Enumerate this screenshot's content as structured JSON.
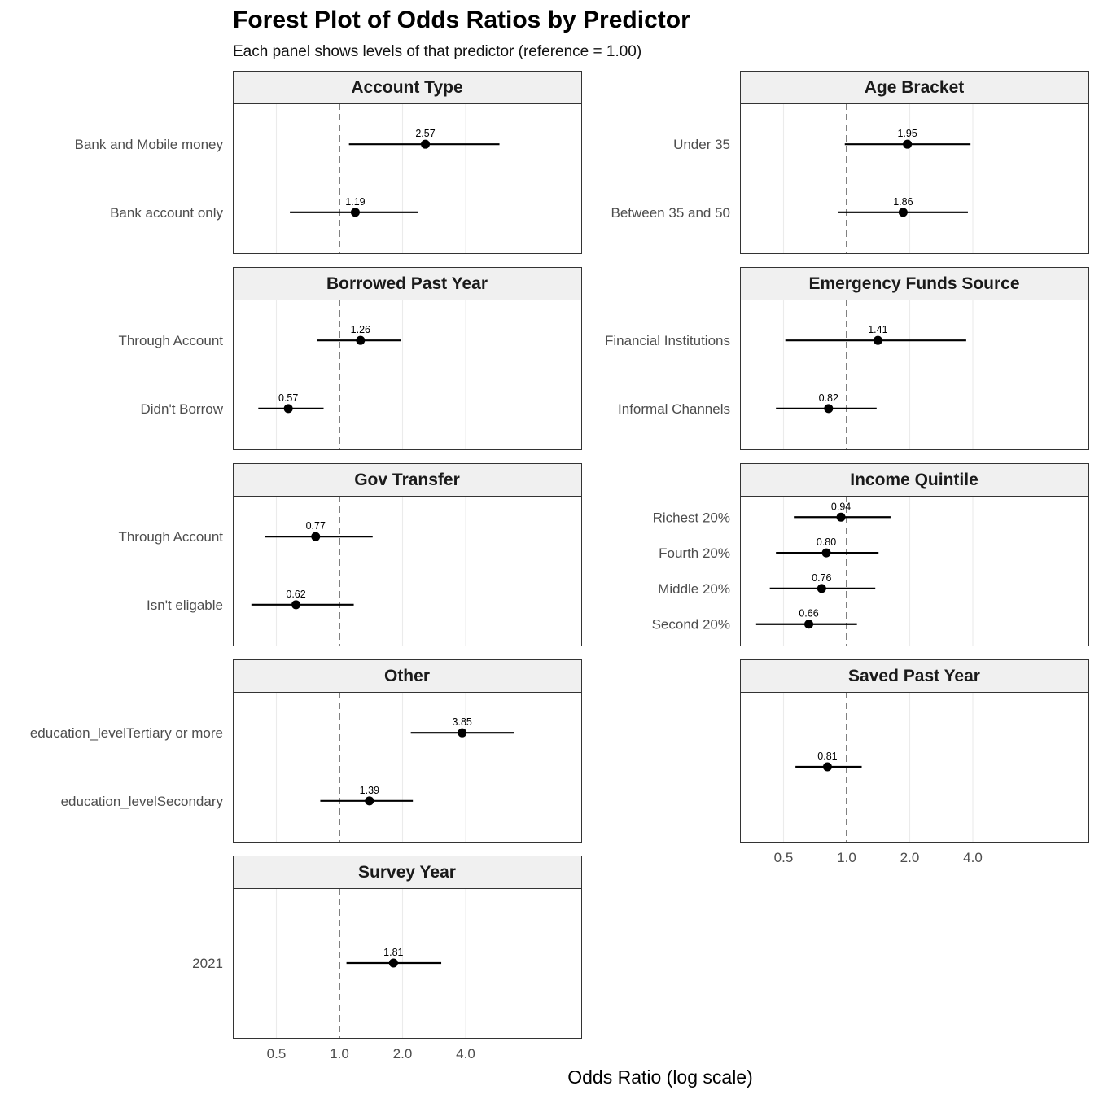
{
  "chart_data": {
    "type": "scatter",
    "subtype": "forest-plot-faceted",
    "title": "Forest Plot of Odds Ratios by Predictor",
    "subtitle": "Each panel shows levels of that predictor (reference = 1.00)",
    "xlabel": "Odds Ratio (log scale)",
    "x_scale": "log",
    "x_ticks": [
      0.5,
      1.0,
      2.0,
      4.0
    ],
    "x_tick_labels": [
      "0.5",
      "1.0",
      "2.0",
      "4.0"
    ],
    "xlim": [
      0.33,
      10.0
    ],
    "reference_line": 1.0,
    "grid": "vertical major",
    "facets": [
      {
        "name": "Account Type",
        "levels": [
          {
            "label": "Bank and Mobile money",
            "or": 2.57,
            "low": 1.11,
            "high": 5.8,
            "text": "2.57"
          },
          {
            "label": "Bank account only",
            "or": 1.19,
            "low": 0.58,
            "high": 2.38,
            "text": "1.19"
          }
        ]
      },
      {
        "name": "Age Bracket",
        "levels": [
          {
            "label": "Under 35",
            "or": 1.95,
            "low": 0.98,
            "high": 3.9,
            "text": "1.95"
          },
          {
            "label": "Between 35 and 50",
            "or": 1.86,
            "low": 0.91,
            "high": 3.79,
            "text": "1.86"
          }
        ]
      },
      {
        "name": "Borrowed Past Year",
        "levels": [
          {
            "label": "Through Account",
            "or": 1.26,
            "low": 0.78,
            "high": 1.97,
            "text": "1.26"
          },
          {
            "label": "Didn't Borrow",
            "or": 0.57,
            "low": 0.41,
            "high": 0.84,
            "text": "0.57"
          }
        ]
      },
      {
        "name": "Emergency Funds Source",
        "levels": [
          {
            "label": "Financial Institutions",
            "or": 1.41,
            "low": 0.51,
            "high": 3.72,
            "text": "1.41"
          },
          {
            "label": "Informal Channels",
            "or": 0.82,
            "low": 0.46,
            "high": 1.39,
            "text": "0.82"
          }
        ]
      },
      {
        "name": "Gov Transfer",
        "levels": [
          {
            "label": "Through Account",
            "or": 0.77,
            "low": 0.44,
            "high": 1.44,
            "text": "0.77"
          },
          {
            "label": "Isn't eligable",
            "or": 0.62,
            "low": 0.38,
            "high": 1.17,
            "text": "0.62"
          }
        ]
      },
      {
        "name": "Income Quintile",
        "levels": [
          {
            "label": "Richest 20%",
            "or": 0.94,
            "low": 0.56,
            "high": 1.62,
            "text": "0.94"
          },
          {
            "label": "Fourth 20%",
            "or": 0.8,
            "low": 0.46,
            "high": 1.42,
            "text": "0.80"
          },
          {
            "label": "Middle 20%",
            "or": 0.76,
            "low": 0.43,
            "high": 1.37,
            "text": "0.76"
          },
          {
            "label": "Second 20%",
            "or": 0.66,
            "low": 0.37,
            "high": 1.12,
            "text": "0.66"
          }
        ]
      },
      {
        "name": "Other",
        "levels": [
          {
            "label": "education_levelTertiary or more",
            "or": 3.85,
            "low": 2.19,
            "high": 6.78,
            "text": "3.85"
          },
          {
            "label": "education_levelSecondary",
            "or": 1.39,
            "low": 0.81,
            "high": 2.24,
            "text": "1.39"
          }
        ]
      },
      {
        "name": "Saved Past Year",
        "levels": [
          {
            "label": "",
            "or": 0.81,
            "low": 0.57,
            "high": 1.18,
            "text": "0.81"
          }
        ]
      },
      {
        "name": "Survey Year",
        "levels": [
          {
            "label": "2021",
            "or": 1.81,
            "low": 1.08,
            "high": 3.06,
            "text": "1.81"
          }
        ]
      }
    ]
  },
  "colors": {
    "strip_fill": "#f0f0f0",
    "strip_border": "#333333",
    "panel_border": "#333333",
    "gridline": "#ebebeb",
    "reference_line": "#808080",
    "points": "#000000",
    "label_text": "#4d4d4d"
  }
}
